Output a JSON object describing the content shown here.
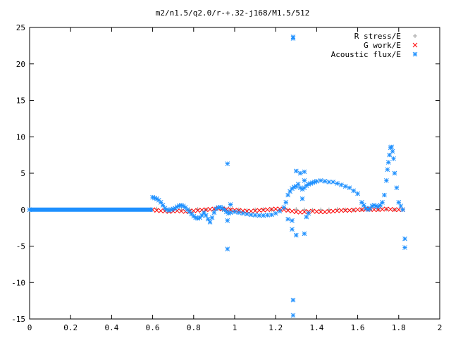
{
  "chart_data": {
    "type": "scatter",
    "title": "m2/n1.5/q2.0/r-+.32-j168/M1.5/512",
    "xlabel": "",
    "ylabel": "",
    "xlim": [
      0,
      2
    ],
    "ylim": [
      -15,
      25
    ],
    "x_ticks": [
      "0",
      "0.2",
      "0.4",
      "0.6",
      "0.8",
      "1",
      "1.2",
      "1.4",
      "1.6",
      "1.8",
      "2"
    ],
    "x_tick_values": [
      0,
      0.2,
      0.4,
      0.6,
      0.8,
      1.0,
      1.2,
      1.4,
      1.6,
      1.8,
      2.0
    ],
    "y_ticks": [
      "-15",
      "-10",
      "-5",
      "0",
      "5",
      "10",
      "15",
      "20",
      "25"
    ],
    "y_tick_values": [
      -15,
      -10,
      -5,
      0,
      5,
      10,
      15,
      20,
      25
    ],
    "grid": false,
    "legend_position": "top-right",
    "series": [
      {
        "name": "R stress/E",
        "marker": "plus",
        "color": "#a0a0a0",
        "x": [
          0.62,
          0.66,
          0.7,
          0.74,
          0.78,
          0.82,
          0.86,
          0.9,
          0.94,
          0.98,
          1.02,
          1.06,
          1.1,
          1.14,
          1.18,
          1.22,
          1.26,
          1.3,
          1.34,
          1.38,
          1.42,
          1.46,
          1.5,
          1.54,
          1.58,
          1.62,
          1.66,
          1.7,
          1.74,
          1.78,
          1.82
        ],
        "y": [
          0.1,
          0.05,
          0.0,
          -0.05,
          0.0,
          0.05,
          0.0,
          -0.05,
          0.0,
          0.05,
          0.0,
          -0.05,
          0.0,
          0.05,
          0.0,
          -0.05,
          0.0,
          0.05,
          0.0,
          -0.05,
          0.0,
          0.0,
          0.05,
          0.0,
          -0.05,
          0.0,
          0.05,
          0.0,
          0.05,
          0.0,
          0.0
        ]
      },
      {
        "name": "G work/E",
        "marker": "cross",
        "color": "#ff0000",
        "x": [
          0.6,
          0.62,
          0.64,
          0.66,
          0.68,
          0.7,
          0.72,
          0.74,
          0.76,
          0.78,
          0.8,
          0.82,
          0.84,
          0.86,
          0.88,
          0.9,
          0.92,
          0.94,
          0.96,
          0.98,
          1.0,
          1.02,
          1.04,
          1.06,
          1.08,
          1.1,
          1.12,
          1.14,
          1.16,
          1.18,
          1.2,
          1.22,
          1.24,
          1.26,
          1.28,
          1.3,
          1.32,
          1.34,
          1.36,
          1.38,
          1.4,
          1.42,
          1.44,
          1.46,
          1.48,
          1.5,
          1.52,
          1.54,
          1.56,
          1.58,
          1.6,
          1.62,
          1.64,
          1.66,
          1.68,
          1.7,
          1.72,
          1.74,
          1.76,
          1.78,
          1.8,
          1.82
        ],
        "y": [
          0.0,
          -0.1,
          -0.15,
          -0.2,
          -0.25,
          -0.2,
          -0.15,
          -0.2,
          -0.25,
          -0.2,
          -0.15,
          -0.1,
          -0.05,
          0.0,
          0.05,
          0.1,
          0.15,
          0.1,
          0.05,
          0.0,
          -0.05,
          -0.1,
          -0.15,
          -0.2,
          -0.2,
          -0.15,
          -0.1,
          -0.05,
          0.0,
          0.05,
          0.1,
          0.1,
          0.0,
          -0.1,
          -0.2,
          -0.3,
          -0.35,
          -0.3,
          -0.25,
          -0.2,
          -0.25,
          -0.3,
          -0.3,
          -0.25,
          -0.2,
          -0.15,
          -0.1,
          -0.1,
          -0.1,
          -0.05,
          0.0,
          0.0,
          0.05,
          0.05,
          0.0,
          0.0,
          0.05,
          0.1,
          0.05,
          0.0,
          0.0,
          0.0
        ]
      },
      {
        "name": "Acoustic flux/E",
        "marker": "star",
        "color": "#1e90ff",
        "x": [
          0.0,
          0.6,
          0.61,
          0.62,
          0.63,
          0.64,
          0.65,
          0.66,
          0.67,
          0.68,
          0.69,
          0.7,
          0.71,
          0.72,
          0.73,
          0.74,
          0.75,
          0.76,
          0.77,
          0.78,
          0.79,
          0.8,
          0.81,
          0.82,
          0.83,
          0.84,
          0.85,
          0.86,
          0.87,
          0.88,
          0.89,
          0.9,
          0.91,
          0.92,
          0.93,
          0.94,
          0.95,
          0.96,
          0.97,
          0.98,
          1.0,
          1.02,
          1.04,
          1.06,
          1.08,
          1.1,
          1.12,
          1.14,
          1.16,
          1.18,
          1.2,
          1.22,
          1.24,
          1.25,
          1.26,
          1.27,
          1.28,
          1.29,
          1.3,
          1.31,
          1.32,
          1.33,
          1.34,
          1.35,
          1.36,
          1.37,
          1.38,
          1.39,
          1.4,
          1.42,
          1.44,
          1.46,
          1.48,
          1.5,
          1.52,
          1.54,
          1.56,
          1.58,
          1.6,
          1.62,
          1.63,
          1.64,
          1.65,
          1.66,
          1.67,
          1.68,
          1.69,
          1.7,
          1.71,
          1.72,
          1.73,
          1.74,
          1.745,
          1.75,
          1.755,
          1.76,
          1.765,
          1.77,
          1.775,
          1.78,
          1.79,
          1.8,
          1.81,
          1.82,
          1.83,
          0.965,
          0.965,
          0.965,
          1.285,
          1.285,
          1.285,
          1.285,
          1.3,
          1.32,
          1.34,
          1.34,
          1.26,
          1.35,
          1.36,
          0.98,
          1.33,
          1.34,
          1.28,
          1.3,
          1.28,
          1.83
        ],
        "y": [
          0.0,
          1.7,
          1.6,
          1.5,
          1.3,
          1.0,
          0.6,
          0.2,
          0.0,
          -0.1,
          0.0,
          0.1,
          0.2,
          0.4,
          0.55,
          0.6,
          0.5,
          0.3,
          0.0,
          -0.3,
          -0.6,
          -0.9,
          -1.1,
          -1.2,
          -1.1,
          -0.8,
          -0.4,
          -0.8,
          -1.3,
          -1.7,
          -1.1,
          -0.4,
          0.1,
          0.3,
          0.35,
          0.2,
          0.0,
          -0.3,
          -0.5,
          -0.4,
          -0.3,
          -0.4,
          -0.5,
          -0.6,
          -0.7,
          -0.75,
          -0.8,
          -0.8,
          -0.75,
          -0.7,
          -0.5,
          -0.2,
          0.3,
          1.0,
          2.0,
          2.5,
          2.9,
          3.1,
          3.2,
          3.5,
          3.0,
          2.8,
          3.0,
          3.3,
          3.5,
          3.6,
          3.7,
          3.8,
          3.9,
          4.0,
          3.9,
          3.8,
          3.8,
          3.6,
          3.4,
          3.2,
          3.0,
          2.6,
          2.2,
          1.0,
          0.6,
          0.2,
          0.0,
          0.2,
          0.5,
          0.6,
          0.5,
          0.4,
          0.6,
          1.0,
          2.0,
          4.0,
          5.5,
          6.5,
          7.5,
          8.5,
          8.6,
          8.0,
          7.0,
          5.0,
          3.0,
          1.0,
          0.5,
          0.0,
          -4.0,
          6.3,
          -1.5,
          -5.4,
          23.7,
          23.5,
          -12.4,
          -14.5,
          5.3,
          5.0,
          5.2,
          4.0,
          -1.3,
          -1.0,
          -0.5,
          0.7,
          1.5,
          -3.3,
          -1.5,
          -3.5,
          -2.7,
          -5.2
        ]
      }
    ]
  }
}
